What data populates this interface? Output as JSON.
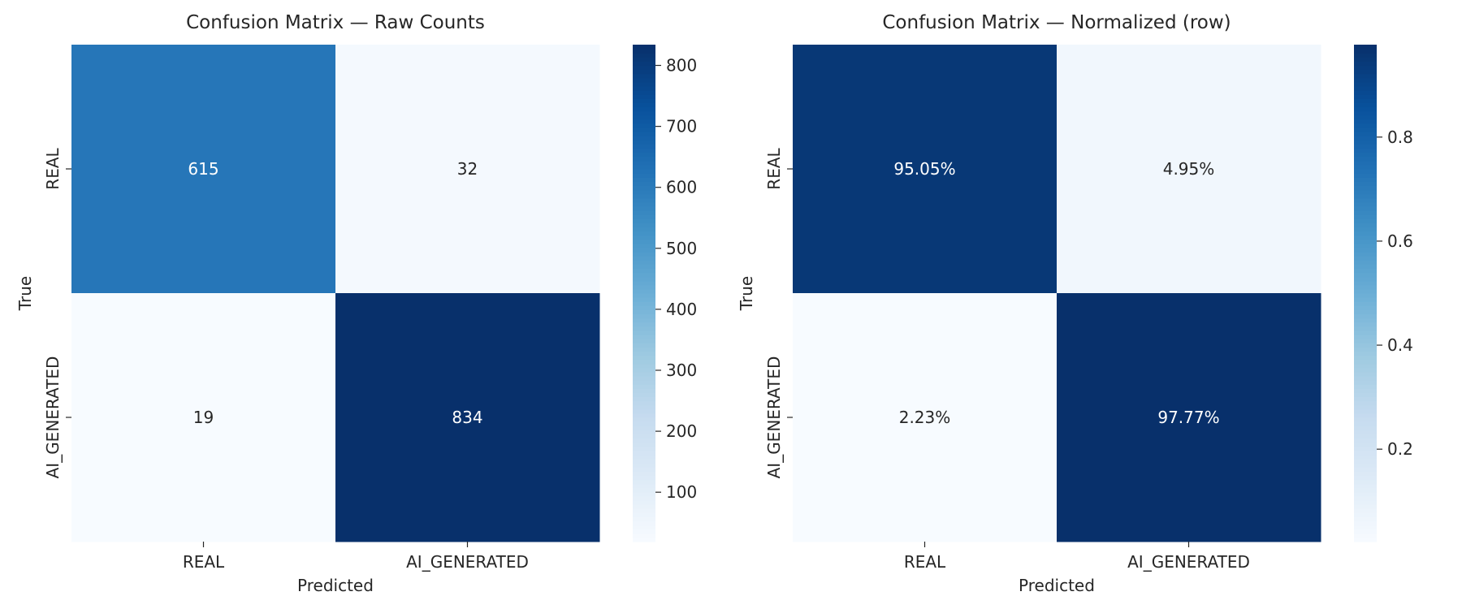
{
  "chart_data": [
    {
      "type": "heatmap",
      "title": "Confusion Matrix — Raw Counts",
      "xlabel": "Predicted",
      "ylabel": "True",
      "x_categories": [
        "REAL",
        "AI_GENERATED"
      ],
      "y_categories": [
        "REAL",
        "AI_GENERATED"
      ],
      "values": [
        [
          615,
          32
        ],
        [
          19,
          834
        ]
      ],
      "cell_labels": [
        [
          "615",
          "32"
        ],
        [
          "19",
          "834"
        ]
      ],
      "colormap": "Blues",
      "vmin": 19,
      "vmax": 834,
      "colorbar_ticks": [
        100,
        200,
        300,
        400,
        500,
        600,
        700,
        800
      ]
    },
    {
      "type": "heatmap",
      "title": "Confusion Matrix — Normalized (row)",
      "xlabel": "Predicted",
      "ylabel": "True",
      "x_categories": [
        "REAL",
        "AI_GENERATED"
      ],
      "y_categories": [
        "REAL",
        "AI_GENERATED"
      ],
      "values": [
        [
          0.9505,
          0.0495
        ],
        [
          0.0223,
          0.9777
        ]
      ],
      "cell_labels": [
        [
          "95.05%",
          "4.95%"
        ],
        [
          "2.23%",
          "97.77%"
        ]
      ],
      "colormap": "Blues",
      "vmin": 0.0223,
      "vmax": 0.9777,
      "colorbar_ticks": [
        0.2,
        0.4,
        0.6,
        0.8
      ]
    }
  ]
}
